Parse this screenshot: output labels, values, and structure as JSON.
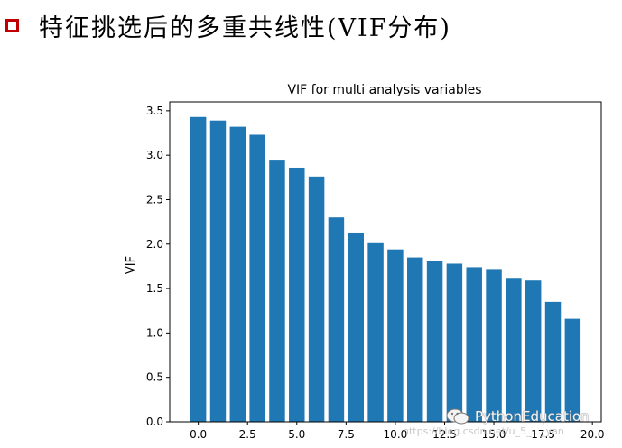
{
  "slide": {
    "title": "特征挑选后的多重共线性(VIF分布)"
  },
  "chart_data": {
    "type": "bar",
    "title": "VIF for multi analysis variables",
    "xlabel": "",
    "ylabel": "VIF",
    "x": [
      0,
      1,
      2,
      3,
      4,
      5,
      6,
      7,
      8,
      9,
      10,
      11,
      12,
      13,
      14,
      15,
      16,
      17,
      18,
      19
    ],
    "values": [
      3.43,
      3.39,
      3.32,
      3.23,
      2.94,
      2.86,
      2.76,
      2.3,
      2.13,
      2.01,
      1.94,
      1.85,
      1.81,
      1.78,
      1.74,
      1.72,
      1.62,
      1.59,
      1.35,
      1.16
    ],
    "xlim": [
      -1.45,
      20.45
    ],
    "ylim": [
      0,
      3.6
    ],
    "xticks": [
      "0.0",
      "2.5",
      "5.0",
      "7.5",
      "10.0",
      "12.5",
      "15.0",
      "17.5",
      "20.0"
    ],
    "xtick_values": [
      0,
      2.5,
      5,
      7.5,
      10,
      12.5,
      15,
      17.5,
      20
    ],
    "yticks": [
      "0.0",
      "0.5",
      "1.0",
      "1.5",
      "2.0",
      "2.5",
      "3.0",
      "3.5"
    ],
    "ytick_values": [
      0,
      0.5,
      1,
      1.5,
      2,
      2.5,
      3,
      3.5
    ],
    "bar_color": "#1f77b4",
    "grid": false,
    "legend": "none"
  },
  "watermark": {
    "text": "PythonEducation",
    "url": "https://blog.csdn.net/u_5_..._yan",
    "icon": "wechat-icon"
  }
}
